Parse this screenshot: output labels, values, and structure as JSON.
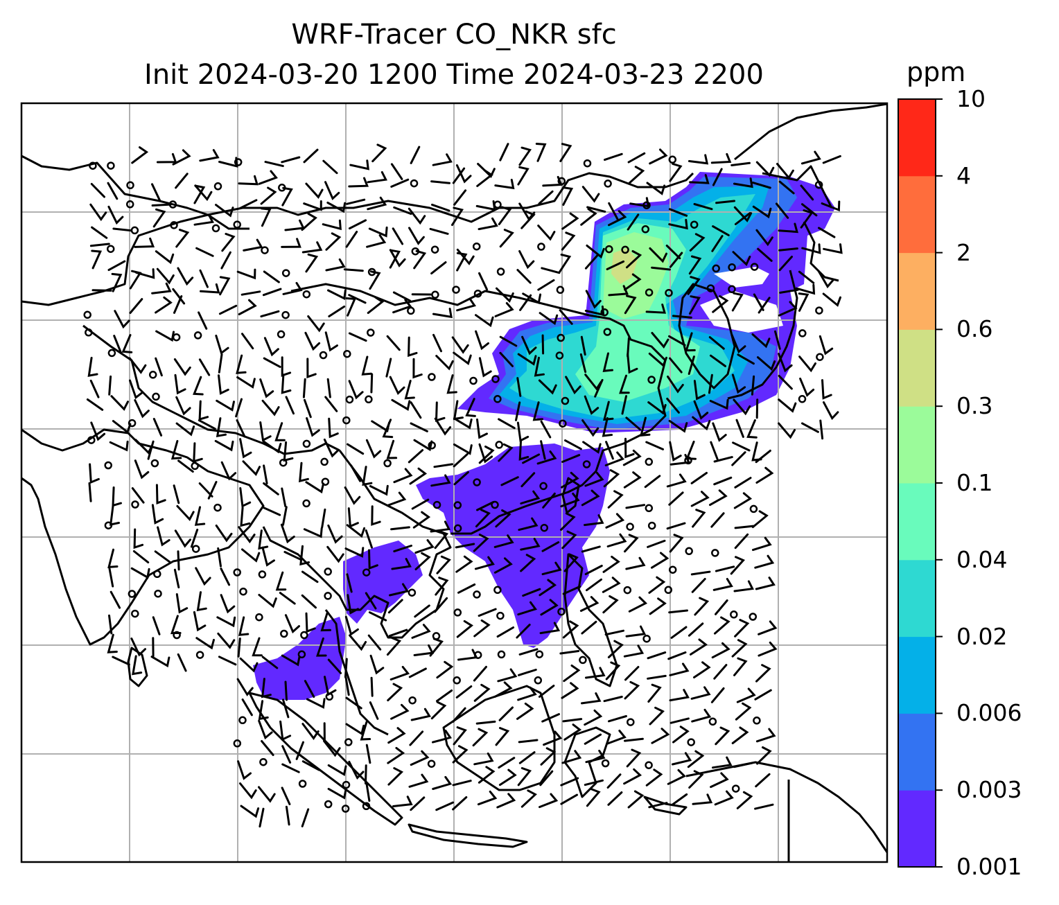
{
  "title": {
    "line1": "WRF-Tracer CO_NKR sfc",
    "line2": "Init 2024-03-20 1200 Time 2024-03-23 2200"
  },
  "colorbar": {
    "units": "ppm",
    "tick_labels": [
      "10",
      "4",
      "2",
      "0.6",
      "0.3",
      "0.1",
      "0.04",
      "0.02",
      "0.006",
      "0.003",
      "0.001"
    ],
    "levels": [
      0.001,
      0.003,
      0.006,
      0.02,
      0.04,
      0.1,
      0.3,
      0.6,
      2,
      4,
      10
    ],
    "colors": [
      "#6229ff",
      "#3373f2",
      "#04b0e8",
      "#2ed9d2",
      "#69fbbc",
      "#9bfb9a",
      "#cfe085",
      "#fdaf61",
      "#ff6d3c",
      "#ff2818"
    ]
  },
  "map": {
    "field": "CO_NKR tracer concentration (surface)",
    "overlay": "wind barbs",
    "gridlines": true,
    "colormap": "rainbow"
  }
}
